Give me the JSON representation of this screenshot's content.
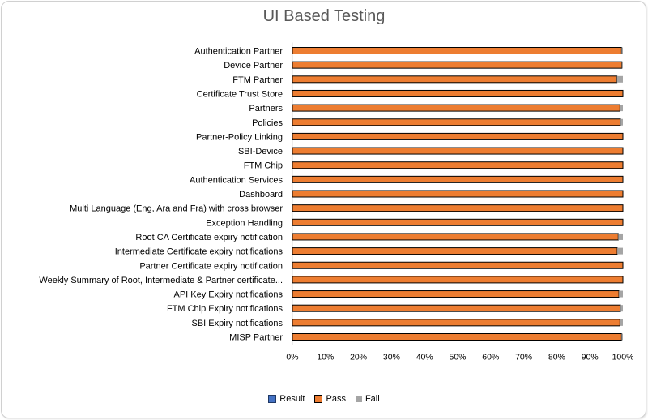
{
  "chart_data": {
    "type": "bar",
    "orientation": "horizontal",
    "stacked": true,
    "percent_stacked": true,
    "title": "UI Based Testing",
    "categories": [
      "Authentication Partner",
      "Device Partner",
      "FTM Partner",
      "Certificate Trust Store",
      "Partners",
      "Policies",
      "Partner-Policy Linking",
      "SBI-Device",
      "FTM Chip",
      "Authentication Services",
      "Dashboard",
      "Multi Language (Eng, Ara and Fra) with cross browser",
      "Exception Handling",
      "Root CA Certificate expiry notification",
      "Intermediate Certificate expiry notifications",
      "Partner Certificate expiry notification",
      "Weekly Summary of Root, Intermediate & Partner certificate...",
      "API Key Expiry notifications",
      "FTM Chip Expiry notifications",
      "SBI Expiry notifications",
      "MISP Partner"
    ],
    "series": [
      {
        "name": "Result",
        "color": "#4472c4",
        "values": [
          0,
          0,
          0,
          0,
          0,
          0,
          0,
          0,
          0,
          0,
          0,
          0,
          0,
          0,
          0,
          0,
          0,
          0,
          0,
          0,
          0
        ]
      },
      {
        "name": "Pass",
        "color": "#ed7d31",
        "values": [
          99.6,
          99.7,
          98.2,
          100,
          99.1,
          99.3,
          100,
          100,
          100,
          100,
          100,
          100,
          100,
          98.6,
          98.3,
          100,
          100,
          98.8,
          99.3,
          99.1,
          99.6
        ]
      },
      {
        "name": "Fail",
        "color": "#a5a5a5",
        "values": [
          0.4,
          0.3,
          1.8,
          0,
          0.9,
          0.7,
          0,
          0,
          0,
          0,
          0,
          0,
          0,
          1.4,
          1.7,
          0,
          0,
          1.2,
          0.7,
          0.9,
          0.4
        ]
      }
    ],
    "xaxis": {
      "ticks": [
        "0%",
        "10%",
        "20%",
        "30%",
        "40%",
        "50%",
        "60%",
        "70%",
        "80%",
        "90%",
        "100%"
      ],
      "range": [
        0,
        100
      ]
    },
    "grid": false,
    "legend_position": "bottom"
  }
}
